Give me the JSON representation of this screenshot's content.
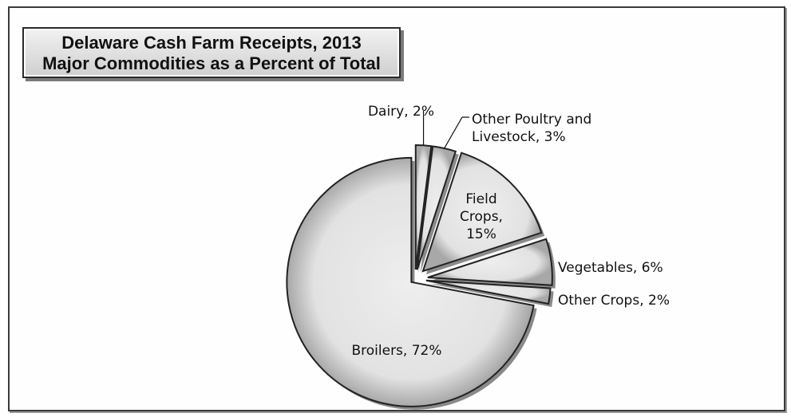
{
  "chart_data": {
    "type": "pie",
    "title": "Delaware Cash Farm Receipts, 2013",
    "subtitle": "Major Commodities as a Percent of Total",
    "slices": [
      {
        "label": "Dairy, 2%",
        "category": "Dairy",
        "value": 2
      },
      {
        "label": "Other Poultry and Livestock, 3%",
        "label_lines": [
          "Other Poultry and",
          "Livestock, 3%"
        ],
        "category": "Other Poultry and Livestock",
        "value": 3
      },
      {
        "label": "Field Crops, 15%",
        "label_lines": [
          "Field",
          "Crops,",
          "15%"
        ],
        "category": "Field Crops",
        "value": 15
      },
      {
        "label": "Vegetables, 6%",
        "category": "Vegetables",
        "value": 6
      },
      {
        "label": "Other Crops, 2%",
        "category": "Other Crops",
        "value": 2
      },
      {
        "label": "Broilers, 72%",
        "category": "Broilers",
        "value": 72
      }
    ],
    "colors": {
      "fill": "#e3e3e3",
      "stroke": "#222222"
    },
    "legend": "none",
    "exploded": true
  }
}
